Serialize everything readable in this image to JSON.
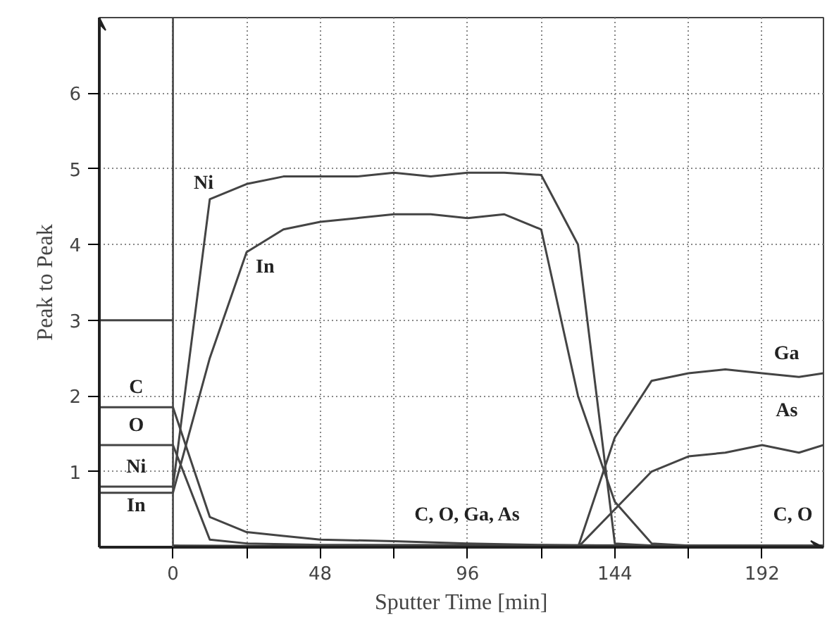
{
  "chart_data": {
    "type": "line",
    "xlabel": "Sputter Time [min]",
    "ylabel": "Peak to Peak",
    "xlim": [
      -24,
      212
    ],
    "ylim": [
      0,
      7
    ],
    "xticks": [
      0,
      {
        "value": 24,
        "label": null
      },
      48,
      {
        "value": 72,
        "label": null
      },
      96,
      {
        "value": 120,
        "label": null
      },
      144,
      {
        "value": 168,
        "label": null
      },
      192
    ],
    "yticks": [
      1,
      2,
      3,
      4,
      5,
      6
    ],
    "grid": true,
    "line_style": "solid",
    "marker": "none",
    "ref_lines": [
      {
        "axis": "x",
        "value": 0,
        "color": "#444444"
      }
    ],
    "series": [
      {
        "color": "#444444",
        "x": [
          -24,
          0
        ],
        "values": [
          3,
          3
        ]
      },
      {
        "color": "#444444",
        "x": [
          -24,
          0,
          12,
          24,
          36,
          48,
          60,
          72,
          84,
          96,
          108,
          120,
          132,
          144,
          156,
          168
        ],
        "values": [
          0.8,
          0.8,
          4.6,
          4.8,
          4.9,
          4.9,
          4.9,
          4.95,
          4.9,
          4.95,
          4.95,
          4.92,
          4.0,
          0.05,
          0.02,
          0.02
        ]
      },
      {
        "color": "#444444",
        "x": [
          -24,
          0,
          12,
          24,
          36,
          48,
          60,
          72,
          84,
          96,
          108,
          120,
          132,
          144,
          156,
          168
        ],
        "values": [
          0.72,
          0.72,
          2.5,
          3.9,
          4.2,
          4.3,
          4.35,
          4.4,
          4.4,
          4.35,
          4.4,
          4.2,
          2.0,
          0.6,
          0.05,
          0.02
        ]
      },
      {
        "color": "#444444",
        "x": [
          -24,
          0,
          12,
          24,
          36,
          48,
          72,
          96,
          120,
          144,
          212
        ],
        "values": [
          1.85,
          1.85,
          0.4,
          0.2,
          0.15,
          0.1,
          0.08,
          0.05,
          0.03,
          0.02,
          0.02
        ]
      },
      {
        "color": "#444444",
        "x": [
          -24,
          0,
          12,
          24,
          48,
          212
        ],
        "values": [
          1.35,
          1.35,
          0.1,
          0.05,
          0.03,
          0.02
        ]
      },
      {
        "color": "#444444",
        "x": [
          0,
          132,
          144,
          156,
          168,
          180,
          192,
          204,
          212
        ],
        "values": [
          0.02,
          0.0,
          1.45,
          2.2,
          2.3,
          2.35,
          2.3,
          2.25,
          2.3
        ]
      },
      {
        "color": "#444444",
        "x": [
          0,
          132,
          156,
          168,
          180,
          192,
          204,
          212
        ],
        "values": [
          0.02,
          0.0,
          1.0,
          1.2,
          1.25,
          1.35,
          1.25,
          1.35
        ]
      }
    ],
    "annotations": [
      "Ni",
      "In",
      "C",
      "O",
      "Ni",
      "In",
      "C, O, Ga, As",
      "Ga",
      "As",
      "C, O"
    ]
  }
}
